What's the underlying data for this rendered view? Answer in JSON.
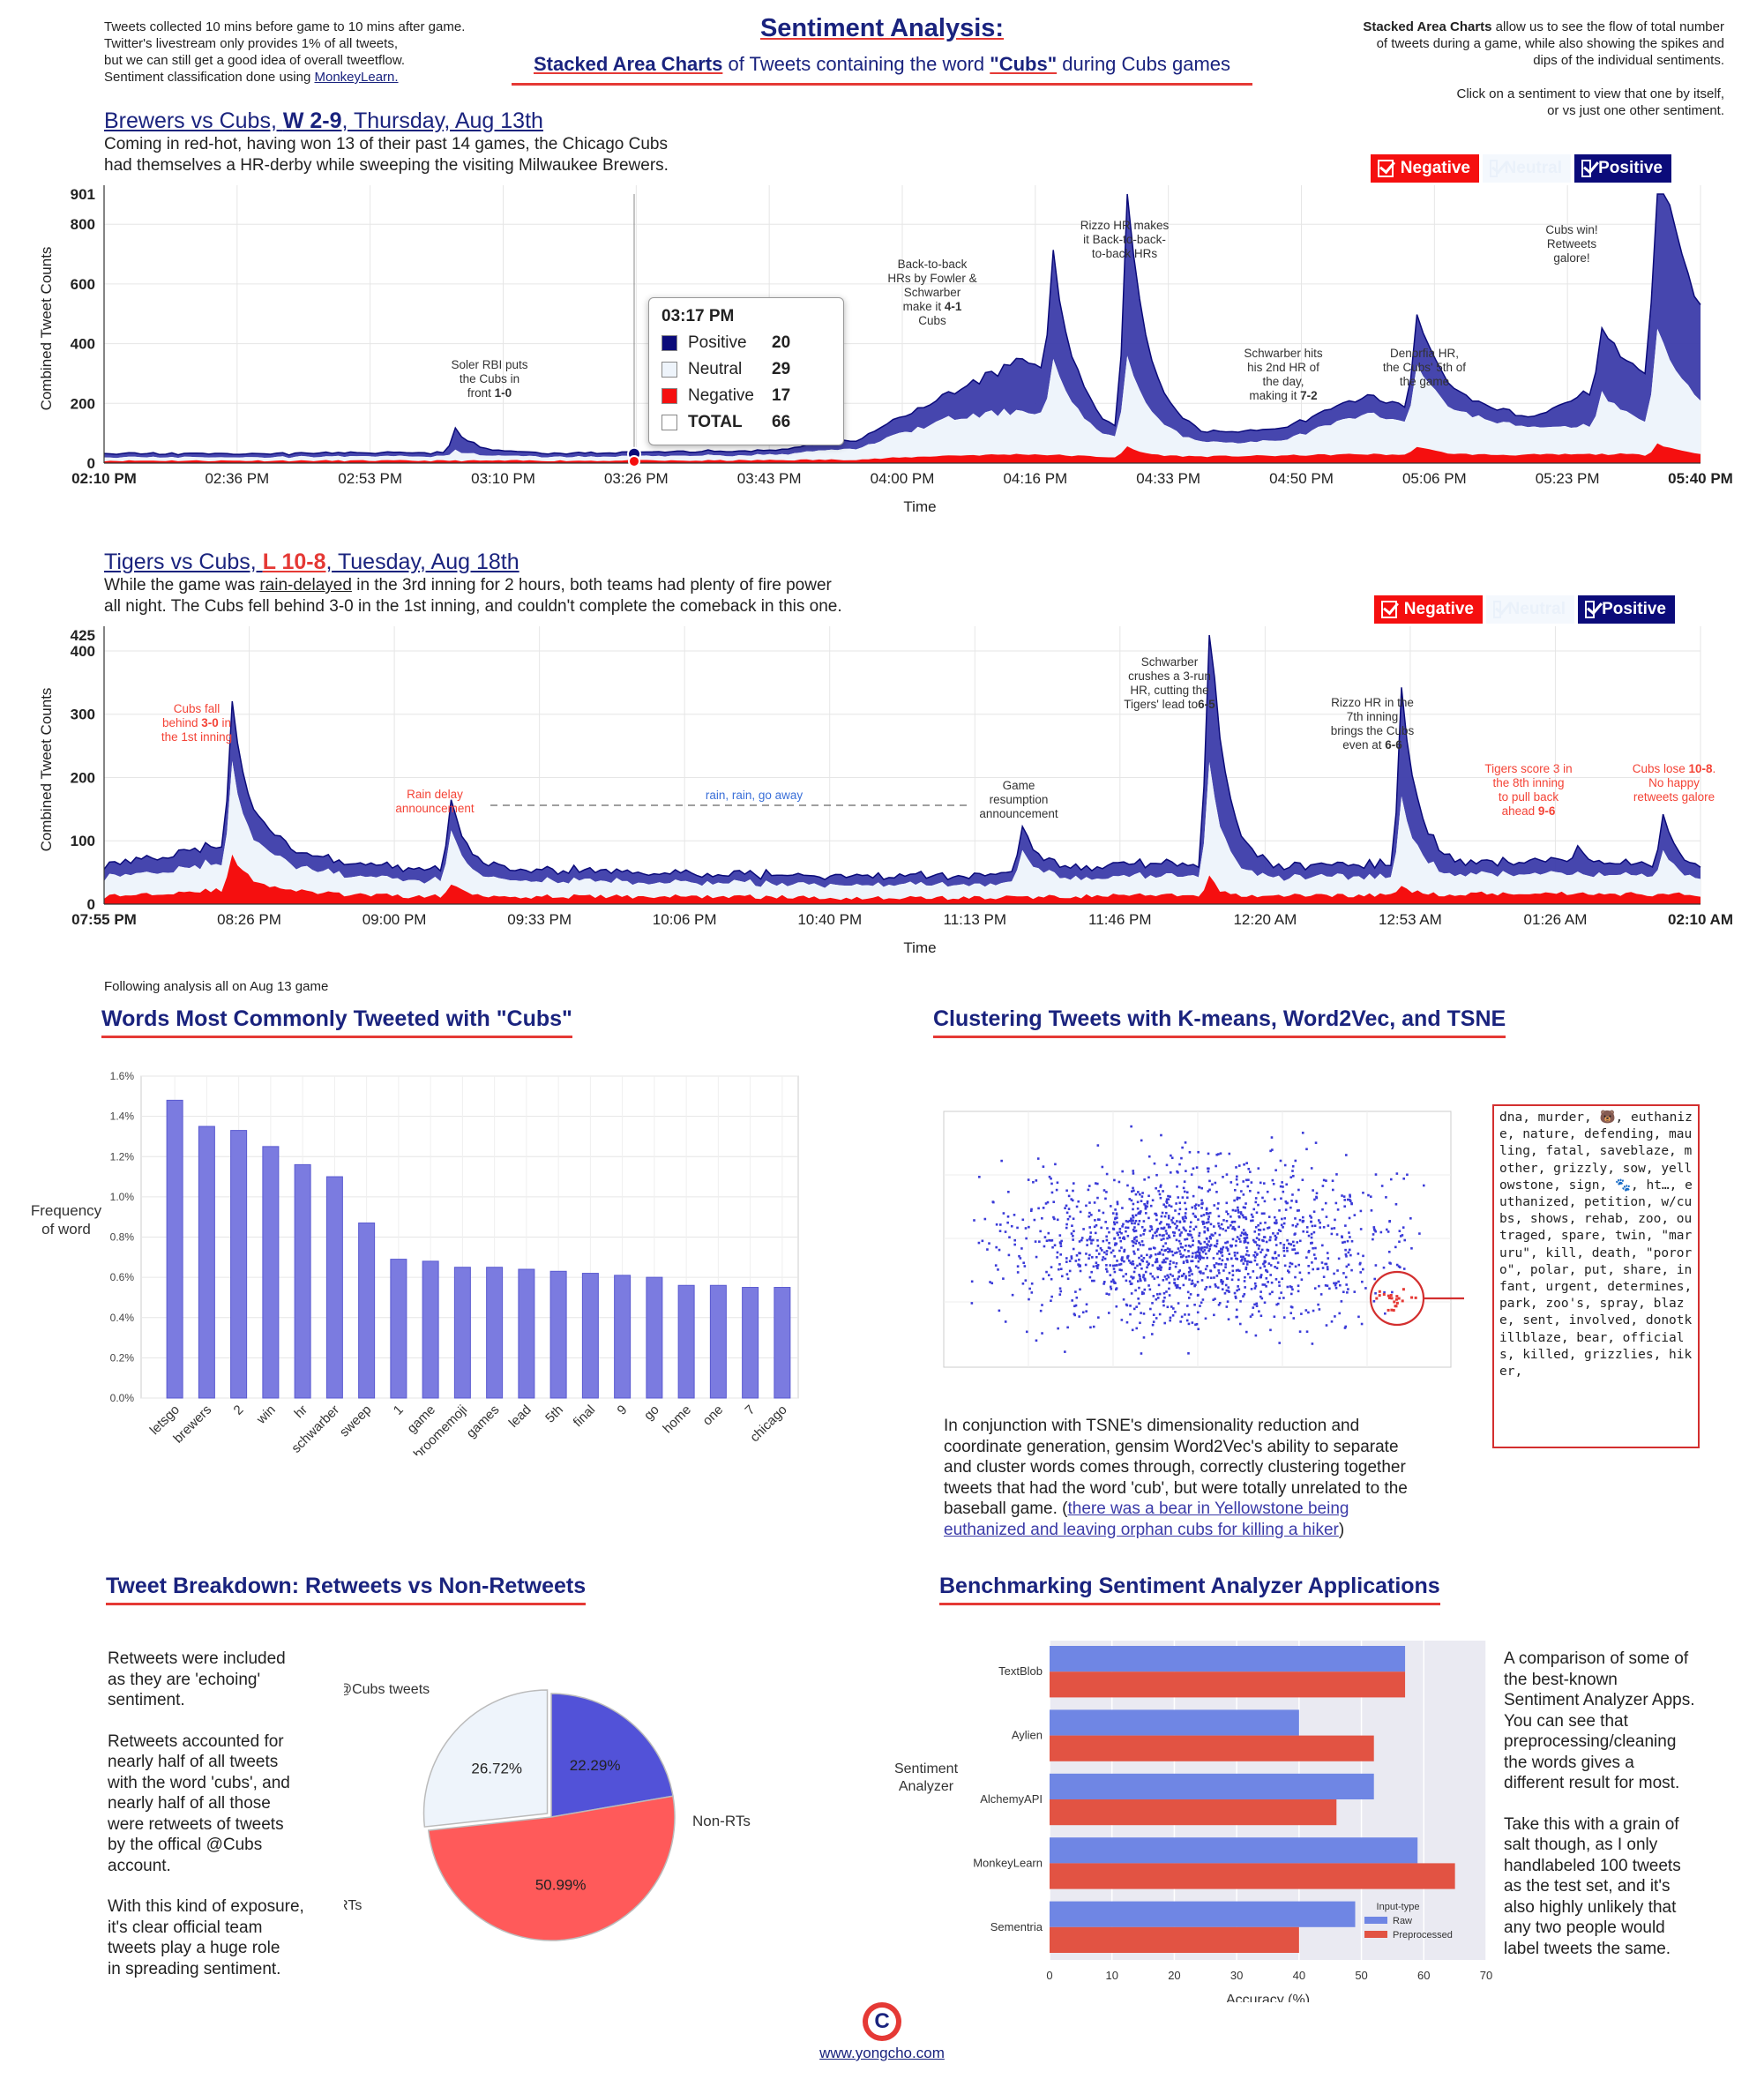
{
  "header": {
    "left_notes": [
      "Tweets collected 10 mins before game to 10 mins after game.",
      "Twitter's livestream only provides 1% of all tweets,",
      "but we can still get a good idea of overall tweetflow.",
      "Sentiment classification done using "
    ],
    "left_link": "MonkeyLearn.",
    "title": "Sentiment Analysis:",
    "subtitle_bold": "Stacked Area Charts",
    "subtitle_mid": " of Tweets containing the word ",
    "subtitle_word": "\"Cubs\"",
    "subtitle_end": " during Cubs games",
    "right_bold": "Stacked Area Charts",
    "right_rest": " allow us to see the flow of total number",
    "right_lines": [
      "of tweets during a game, while also showing the spikes and",
      "dips of the individual sentiments."
    ],
    "right_click": [
      "Click on a sentiment to view that one by itself,",
      "or vs just one other sentiment."
    ]
  },
  "legend": {
    "negative": "Negative",
    "neutral": "Neutral",
    "positive": "Positive"
  },
  "colors": {
    "positive": "#0b0b7a",
    "positive_area": "#3b3ba8",
    "neutral": "#eef4fb",
    "negative": "#f50f0f",
    "accent": "#e53935"
  },
  "game1": {
    "title_link": "Brewers vs Cubs, ",
    "result": "W 2-9",
    "date": ", Thursday, Aug 13th",
    "desc": [
      "Coming in red-hot, having won 13 of their past 14 games, the Chicago Cubs",
      "had themselves a HR-derby while sweeping the visiting Milwaukee Brewers."
    ],
    "ylabel": "Combined Tweet Counts",
    "xlabel": "Time",
    "max_label": "901",
    "yticks": [
      "0",
      "200",
      "400",
      "600",
      "800"
    ],
    "xticks": [
      "02:10 PM",
      "02:36 PM",
      "02:53 PM",
      "03:10 PM",
      "03:26 PM",
      "03:43 PM",
      "04:00 PM",
      "04:16 PM",
      "04:33 PM",
      "04:50 PM",
      "05:06 PM",
      "05:23 PM",
      "05:40 PM"
    ],
    "annotations": [
      {
        "lines": [
          "Soler RBI puts",
          "the Cubs in",
          "front "
        ],
        "bold": "1-0"
      },
      {
        "lines": [
          "Back-to-back",
          "HRs by Fowler &",
          "Schwarber",
          "make it "
        ],
        "bold": "4-1",
        "tail": "Cubs"
      },
      {
        "lines": [
          "Rizzo HR makes",
          "it Back-to-back-",
          "to-back HRs"
        ]
      },
      {
        "lines": [
          "Schwarber hits",
          "his 2nd HR of",
          "the day,",
          "making it "
        ],
        "bold": "7-2"
      },
      {
        "lines": [
          "Denorfia HR,",
          "the Cubs' 5th of",
          "the game"
        ]
      },
      {
        "lines": [
          "Cubs win!",
          "Retweets",
          "galore!"
        ]
      }
    ],
    "tooltip": {
      "time": "03:17 PM",
      "rows": [
        {
          "label": "Positive",
          "value": "20"
        },
        {
          "label": "Neutral",
          "value": "29"
        },
        {
          "label": "Negative",
          "value": "17"
        },
        {
          "label": "TOTAL",
          "value": "66"
        }
      ]
    }
  },
  "game2": {
    "title_link": "Tigers vs Cubs, ",
    "result": "L 10-8",
    "date": ", Tuesday, Aug 18th",
    "desc_pre": "While the game was ",
    "desc_link": "rain-delayed",
    "desc_post": " in the 3rd inning for 2 hours, both teams had plenty of fire power",
    "desc2": "all night. The Cubs fell behind 3-0 in the 1st inning, and couldn't complete the comeback in this one.",
    "ylabel": "Combined Tweet Counts",
    "xlabel": "Time",
    "max_label": "425",
    "yticks": [
      "0",
      "100",
      "200",
      "300",
      "400"
    ],
    "xticks": [
      "07:55 PM",
      "08:26 PM",
      "09:00 PM",
      "09:33 PM",
      "10:06 PM",
      "10:40 PM",
      "11:13 PM",
      "11:46 PM",
      "12:20 AM",
      "12:53 AM",
      "01:26 AM",
      "02:10 AM"
    ],
    "annotations": [
      {
        "lines": [
          "Cubs fall",
          "behind "
        ],
        "bold": "3-0",
        "tail2": " in",
        "last": "the 1st inning",
        "color": "red"
      },
      {
        "lines": [
          "Rain delay",
          "announcement"
        ],
        "color": "red"
      },
      {
        "lines": [
          "rain, rain, go away"
        ],
        "color": "blue"
      },
      {
        "lines": [
          "Game",
          "resumption",
          "announcement"
        ]
      },
      {
        "lines": [
          "Schwarber",
          "crushes a 3-run",
          "HR, cutting the",
          "Tigers' lead to"
        ],
        "bold": "6-5"
      },
      {
        "lines": [
          "Rizzo HR in the",
          "7th inning",
          "brings the Cubs",
          "even at "
        ],
        "bold": "6-6"
      },
      {
        "lines": [
          "Tigers score 3 in",
          "the 8th inning",
          "to pull back",
          "ahead "
        ],
        "bold": "9-6",
        "color": "red"
      },
      {
        "lines": [
          "Cubs lose "
        ],
        "bold": "10-8",
        "tail2": ".",
        "rest": [
          "No happy",
          "retweets galore"
        ],
        "color": "red"
      }
    ]
  },
  "analysis_note": "Following analysis all on Aug 13 game",
  "words_section": {
    "title": "Words Most Commonly Tweeted with \"Cubs\"",
    "ylabel": [
      "Frequency",
      "of word"
    ],
    "yticks": [
      "0.0%",
      "0.2%",
      "0.4%",
      "0.6%",
      "0.8%",
      "1.0%",
      "1.2%",
      "1.4%",
      "1.6%"
    ]
  },
  "cluster_section": {
    "title": "Clustering Tweets with K-means, Word2Vec, and TSNE",
    "words": "dna, murder, 🐻, euthanize, nature, defending, mauling, fatal, saveblaze, mother, grizzly, sow, yellowstone, sign, 🐾, ht…, euthanized, petition, w/cubs, shows, rehab, zoo, outraged, spare, twin, \"maruru\", kill, death, \"pororo\", polar, put, share, infant, urgent, determines, park, zoo's, spray, blaze, sent, involved, donotkillblaze, bear, officials, killed, grizzlies, hiker,",
    "para_lines": [
      "In conjunction with TSNE's dimensionality reduction and",
      "coordinate generation, gensim Word2Vec's ability to separate",
      "and cluster words comes through, correctly clustering together",
      "tweets that had the word 'cub', but were totally unrelated to the"
    ],
    "para_last_pre": "baseball game. (",
    "para_link1": "there was a bear in Yellowstone being",
    "para_link2": "euthanized and leaving orphan cubs for killing a hiker",
    "para_end": ")"
  },
  "breakdown_section": {
    "title": "Tweet Breakdown: Retweets vs Non-Retweets",
    "paras": [
      [
        "Retweets were included",
        "as they are 'echoing'",
        "sentiment."
      ],
      [
        "Retweets accounted for",
        "nearly half of all tweets",
        "with the word 'cubs', and",
        "nearly half of all those",
        "were retweets of tweets",
        "by the offical @Cubs",
        "account."
      ],
      [
        "With this kind of exposure,",
        "it's clear official team",
        "tweets play a huge role",
        "in spreading sentiment."
      ]
    ]
  },
  "benchmark_section": {
    "title": "Benchmarking Sentiment Analyzer Applications",
    "ylabel": [
      "Sentiment",
      "Analyzer"
    ],
    "legend_title": "Input-type",
    "paras": [
      [
        "A comparison of some of",
        "the best-known",
        "Sentiment Analyzer Apps.",
        "You can see that",
        "preprocessing/cleaning",
        "the words gives a",
        "different result for most."
      ],
      [
        "Take this with a grain of",
        "salt though, as I only",
        "handlabeled 100 tweets",
        "as the test set, and it's",
        "also highly unlikely that",
        "any two people would",
        "label tweets the same."
      ]
    ]
  },
  "footer": {
    "link": "www.yongcho.com",
    "logo": "C"
  },
  "chart_data": [
    {
      "type": "area",
      "title": "Brewers vs Cubs, W 2-9, Thursday, Aug 13th",
      "xlabel": "Time",
      "ylabel": "Combined Tweet Counts",
      "ylim": [
        0,
        901
      ],
      "x": [
        "02:10 PM",
        "02:36 PM",
        "02:53 PM",
        "03:10 PM",
        "03:17 PM",
        "03:26 PM",
        "03:43 PM",
        "04:00 PM",
        "04:05 PM",
        "04:10 PM",
        "04:16 PM",
        "04:33 PM",
        "04:50 PM",
        "05:06 PM",
        "05:23 PM",
        "05:31 PM",
        "05:40 PM"
      ],
      "series": [
        {
          "name": "Negative",
          "values": [
            8,
            8,
            12,
            10,
            17,
            12,
            10,
            15,
            30,
            40,
            60,
            20,
            35,
            25,
            40,
            55,
            25
          ]
        },
        {
          "name": "Neutral",
          "values": [
            12,
            12,
            40,
            20,
            29,
            25,
            20,
            40,
            150,
            200,
            250,
            35,
            140,
            120,
            100,
            280,
            80
          ]
        },
        {
          "name": "Positive",
          "values": [
            10,
            10,
            70,
            15,
            20,
            18,
            15,
            25,
            350,
            250,
            580,
            30,
            200,
            200,
            150,
            520,
            270
          ]
        }
      ],
      "tooltip": {
        "time": "03:17 PM",
        "Positive": 20,
        "Neutral": 29,
        "Negative": 17,
        "TOTAL": 66
      }
    },
    {
      "type": "area",
      "title": "Tigers vs Cubs, L 10-8, Tuesday, Aug 18th",
      "xlabel": "Time",
      "ylabel": "Combined Tweet Counts",
      "ylim": [
        0,
        425
      ],
      "x": [
        "07:55 PM",
        "08:26 PM",
        "08:30 PM",
        "09:00 PM",
        "09:10 PM",
        "09:33 PM",
        "10:06 PM",
        "10:40 PM",
        "11:13 PM",
        "11:25 PM",
        "11:46 PM",
        "12:20 AM",
        "12:53 AM",
        "01:05 AM",
        "01:26 AM",
        "02:00 AM",
        "02:10 AM"
      ],
      "series": [
        {
          "name": "Negative",
          "values": [
            15,
            50,
            25,
            15,
            15,
            10,
            10,
            10,
            8,
            20,
            10,
            30,
            15,
            25,
            15,
            20,
            15
          ]
        },
        {
          "name": "Neutral",
          "values": [
            30,
            100,
            50,
            30,
            70,
            25,
            25,
            20,
            15,
            50,
            20,
            150,
            30,
            110,
            30,
            50,
            25
          ]
        },
        {
          "name": "Positive",
          "values": [
            15,
            70,
            30,
            15,
            20,
            15,
            15,
            15,
            10,
            15,
            15,
            240,
            15,
            140,
            15,
            30,
            10
          ]
        }
      ]
    },
    {
      "type": "bar",
      "title": "Words Most Commonly Tweeted with \"Cubs\"",
      "ylabel": "Frequency of word",
      "ylim": [
        0,
        1.6
      ],
      "unit": "%",
      "categories": [
        "letsgo",
        "brewers",
        "2",
        "win",
        "hr",
        "schwarber",
        "sweep",
        "1",
        "game",
        "broomemoji",
        "games",
        "lead",
        "5th",
        "final",
        "9",
        "go",
        "home",
        "one",
        "7",
        "chicago"
      ],
      "values": [
        1.48,
        1.35,
        1.33,
        1.25,
        1.16,
        1.1,
        0.87,
        0.69,
        0.68,
        0.65,
        0.65,
        0.64,
        0.63,
        0.62,
        0.61,
        0.6,
        0.56,
        0.56,
        0.55,
        0.55
      ]
    },
    {
      "type": "pie",
      "labels": [
        "Non-RTs",
        "RTs of official @Cubs tweets",
        "All other RTs"
      ],
      "values": [
        50.99,
        22.29,
        26.72
      ],
      "value_labels": [
        "50.99%",
        "22.29%",
        "26.72%"
      ],
      "colors": [
        "#ff5a5a",
        "#5252d8",
        "#eef4fb"
      ]
    },
    {
      "type": "bar",
      "orientation": "horizontal",
      "xlabel": "Accuracy (%)",
      "ylabel": "Sentiment Analyzer",
      "xlim": [
        0,
        70
      ],
      "xticks": [
        "0",
        "10",
        "20",
        "30",
        "40",
        "50",
        "60",
        "70"
      ],
      "categories": [
        "TextBlob",
        "Aylien",
        "AlchemyAPI",
        "MonkeyLearn",
        "Sementria"
      ],
      "series": [
        {
          "name": "Raw",
          "values": [
            57,
            40,
            52,
            59,
            49
          ],
          "color": "#6f86e4"
        },
        {
          "name": "Preprocessed",
          "values": [
            57,
            52,
            46,
            65,
            40
          ],
          "color": "#e25343"
        }
      ]
    }
  ]
}
